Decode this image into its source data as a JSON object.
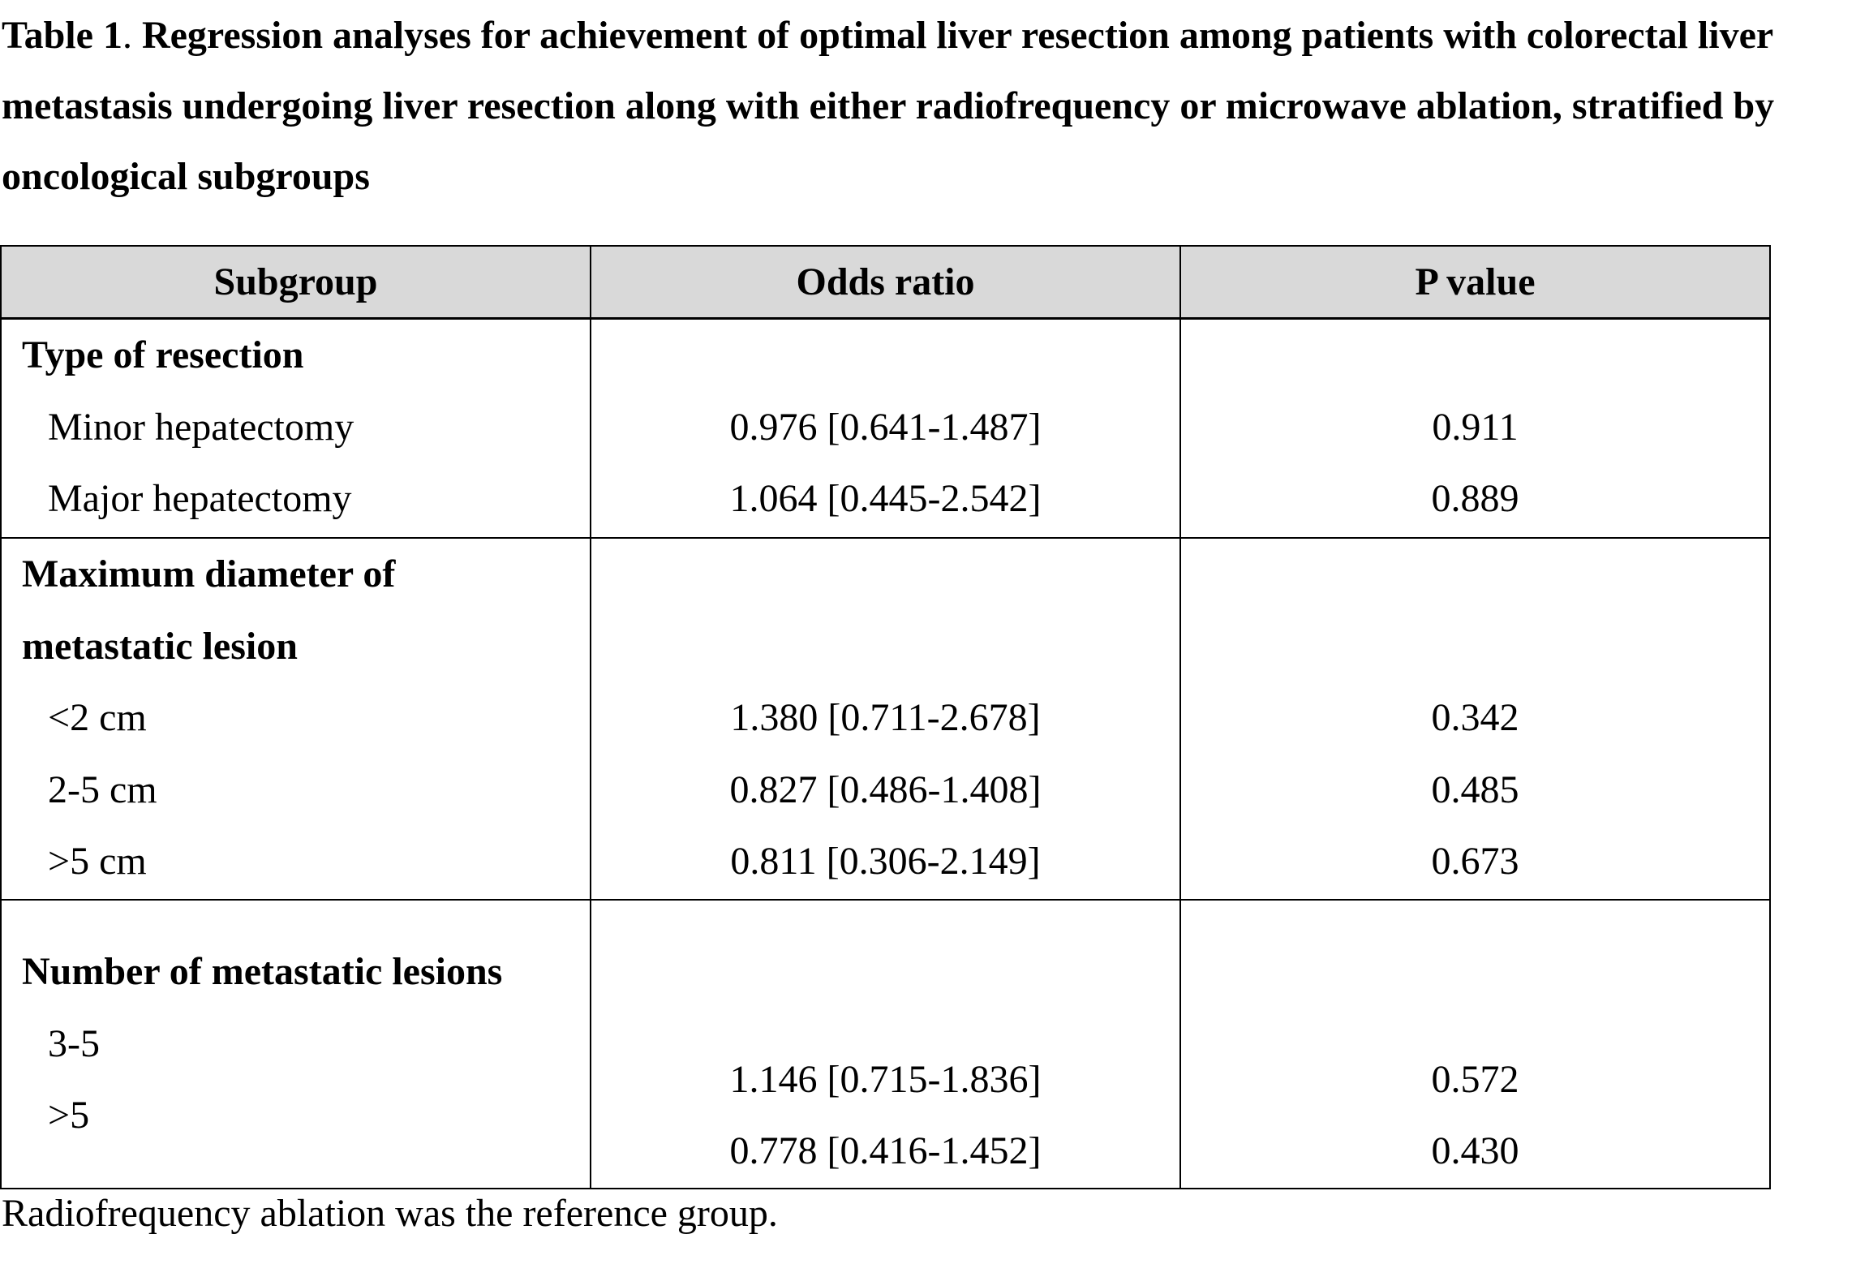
{
  "caption": {
    "label": "Table 1",
    "separator": ". ",
    "text": "Regression analyses for achievement of optimal liver resection among patients with colorectal liver metastasis undergoing liver resection along with either radiofrequency or microwave ablation, stratified by oncological subgroups"
  },
  "table": {
    "headers": [
      "Subgroup",
      "Odds ratio",
      "P value"
    ],
    "sections": [
      {
        "title_lines": [
          "Type of resection"
        ],
        "rows": [
          {
            "label": "Minor hepatectomy",
            "odds_ratio": "0.976 [0.641-1.487]",
            "p_value": "0.911"
          },
          {
            "label": "Major hepatectomy",
            "odds_ratio": "1.064 [0.445-2.542]",
            "p_value": "0.889"
          }
        ]
      },
      {
        "title_lines": [
          "Maximum diameter of",
          "metastatic lesion"
        ],
        "rows": [
          {
            "label": "<2 cm",
            "odds_ratio": "1.380 [0.711-2.678]",
            "p_value": "0.342"
          },
          {
            "label": "2-5 cm",
            "odds_ratio": "0.827 [0.486-1.408]",
            "p_value": "0.485"
          },
          {
            "label": ">5 cm",
            "odds_ratio": "0.811 [0.306-2.149]",
            "p_value": "0.673"
          }
        ]
      },
      {
        "title_lines": [
          "Number of metastatic lesions"
        ],
        "rows": [
          {
            "label": "3-5",
            "odds_ratio": "1.146 [0.715-1.836]",
            "p_value": "0.572"
          },
          {
            "label": ">5",
            "odds_ratio": "0.778 [0.416-1.452]",
            "p_value": "0.430"
          }
        ]
      }
    ]
  },
  "footnote": "Radiofrequency ablation was the reference group."
}
